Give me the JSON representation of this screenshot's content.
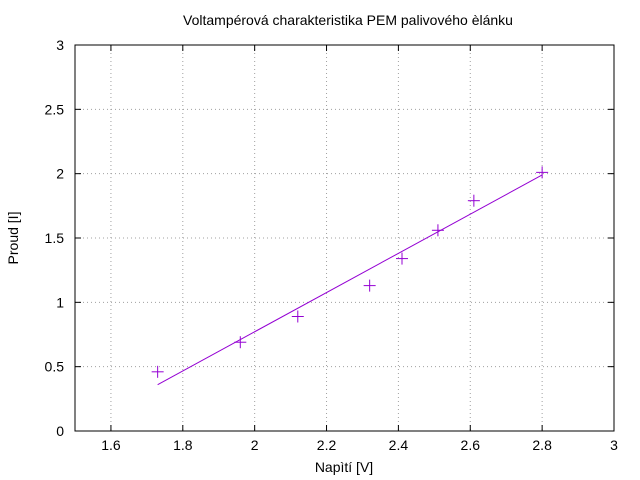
{
  "chart_data": {
    "type": "scatter",
    "title": "Voltampérová charakteristika PEM palivového èlánku",
    "xlabel": "Napìtí [V]",
    "ylabel": "Proud [I]",
    "xlim": [
      1.5,
      3
    ],
    "ylim": [
      0,
      3
    ],
    "xticks": [
      1.6,
      1.8,
      2,
      2.2,
      2.4,
      2.6,
      2.8,
      3
    ],
    "xtick_labels": [
      "1.6",
      "1.8",
      "2",
      "2.2",
      "2.4",
      "2.6",
      "2.8",
      "3"
    ],
    "yticks": [
      0,
      0.5,
      1,
      1.5,
      2,
      2.5,
      3
    ],
    "ytick_labels": [
      "0",
      "0.5",
      "1",
      "1.5",
      "2",
      "2.5",
      "3"
    ],
    "grid": true,
    "series": [
      {
        "kind": "points",
        "marker": "plus",
        "color": "#9400d3",
        "x": [
          1.73,
          1.96,
          2.12,
          2.32,
          2.41,
          2.51,
          2.61,
          2.8
        ],
        "y": [
          0.46,
          0.69,
          0.89,
          1.13,
          1.34,
          1.56,
          1.79,
          2.01
        ]
      },
      {
        "kind": "fit-line",
        "color": "#9400d3",
        "x": [
          1.73,
          2.8
        ],
        "y": [
          0.36,
          1.99
        ]
      }
    ]
  }
}
